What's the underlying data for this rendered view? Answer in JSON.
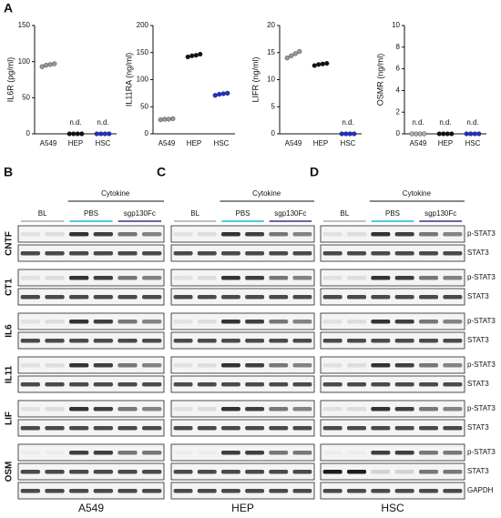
{
  "panels": {
    "a": "A",
    "b": "B",
    "c": "C",
    "d": "D"
  },
  "chart_data": [
    {
      "type": "dot",
      "y_label": "IL6R (pg/ml)",
      "categories": [
        "A549",
        "HEP",
        "HSC"
      ],
      "values": [
        [
          93,
          95,
          96,
          97
        ],
        [
          0,
          0,
          0,
          0
        ],
        [
          0,
          0,
          0,
          0
        ]
      ],
      "colors": [
        "#9a9a9a",
        "#111111",
        "#1f2fd0"
      ],
      "annotations": [
        null,
        "n.d.",
        "n.d."
      ],
      "ylim": [
        0,
        150
      ],
      "yticks": [
        0,
        50,
        100,
        150
      ]
    },
    {
      "type": "dot",
      "y_label": "IL11RA (ng/ml)",
      "categories": [
        "A549",
        "HEP",
        "HSC"
      ],
      "values": [
        [
          26,
          27,
          27,
          28
        ],
        [
          142,
          144,
          145,
          147
        ],
        [
          71,
          73,
          74,
          75
        ]
      ],
      "colors": [
        "#9a9a9a",
        "#111111",
        "#1f2fd0"
      ],
      "annotations": [
        null,
        null,
        null
      ],
      "ylim": [
        0,
        200
      ],
      "yticks": [
        0,
        50,
        100,
        150,
        200
      ]
    },
    {
      "type": "dot",
      "y_label": "LIFR (ng/ml)",
      "categories": [
        "A549",
        "HEP",
        "HSC"
      ],
      "values": [
        [
          14,
          14.4,
          14.8,
          15.2
        ],
        [
          12.6,
          12.8,
          12.9,
          13
        ],
        [
          0,
          0,
          0,
          0
        ]
      ],
      "colors": [
        "#9a9a9a",
        "#111111",
        "#1f2fd0"
      ],
      "annotations": [
        null,
        null,
        "n.d."
      ],
      "ylim": [
        0,
        20
      ],
      "yticks": [
        0,
        5,
        10,
        15,
        20
      ]
    },
    {
      "type": "dot",
      "y_label": "OSMR (ng/ml)",
      "categories": [
        "A549",
        "HEP",
        "HSC"
      ],
      "values": [
        [
          0,
          0,
          0,
          0
        ],
        [
          0,
          0,
          0,
          0
        ],
        [
          0,
          0,
          0,
          0
        ]
      ],
      "colors": [
        "#b0b0b0",
        "#111111",
        "#1f2fd0"
      ],
      "annotations": [
        "n.d.",
        "n.d.",
        "n.d."
      ],
      "ylim": [
        0,
        10
      ],
      "yticks": [
        0,
        2,
        4,
        6,
        8,
        10
      ]
    }
  ],
  "blots": {
    "group": "Cytokine",
    "lanes": [
      "BL",
      "PBS",
      "sgp130Fc"
    ],
    "rows": [
      "CNTF",
      "CT1",
      "IL6",
      "IL11",
      "LIF",
      "OSM"
    ],
    "bands": [
      "p-STAT3",
      "STAT3",
      "GAPDH"
    ],
    "cells": [
      "A549",
      "HEP",
      "HSC"
    ]
  }
}
